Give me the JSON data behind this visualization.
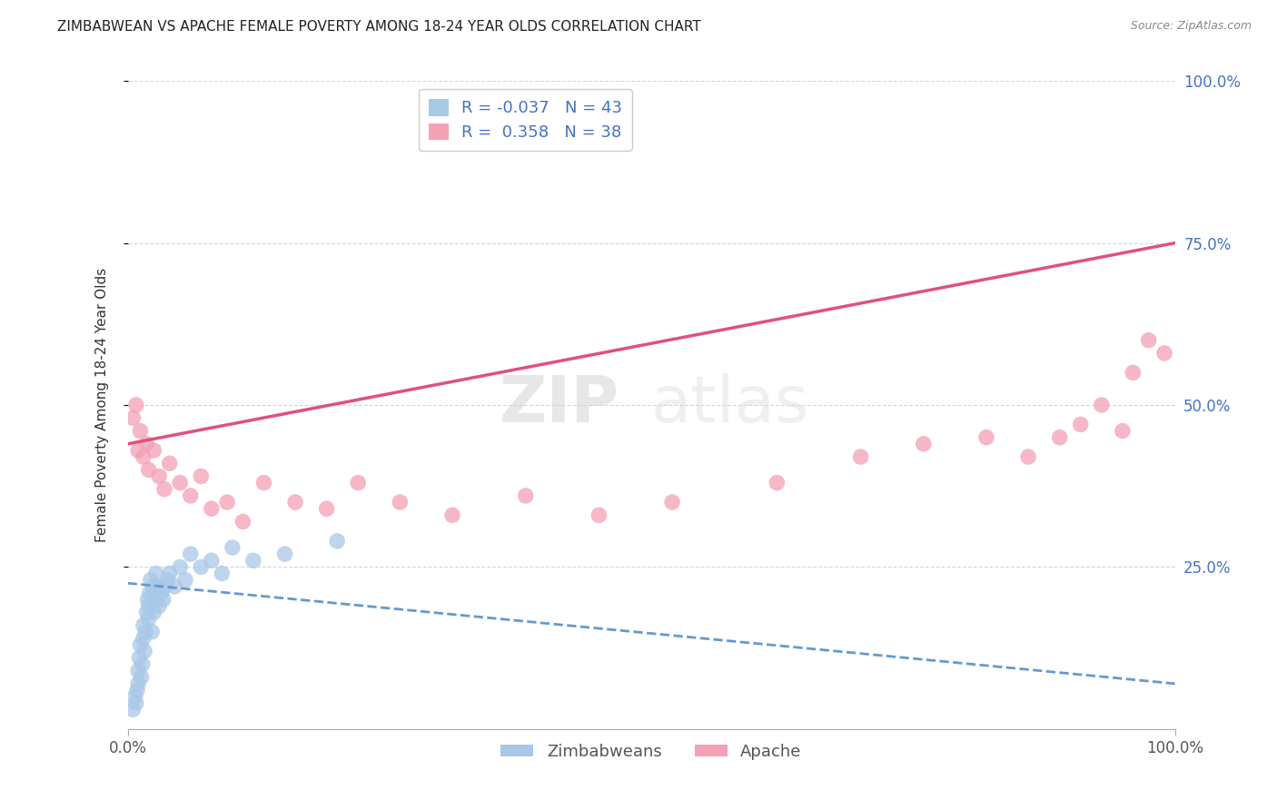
{
  "title": "ZIMBABWEAN VS APACHE FEMALE POVERTY AMONG 18-24 YEAR OLDS CORRELATION CHART",
  "source": "Source: ZipAtlas.com",
  "ylabel": "Female Poverty Among 18-24 Year Olds",
  "xlim": [
    0,
    1
  ],
  "ylim": [
    0,
    1
  ],
  "xticks": [
    0,
    1.0
  ],
  "yticks": [
    0.25,
    0.5,
    0.75,
    1.0
  ],
  "xticklabels": [
    "0.0%",
    "100.0%"
  ],
  "yticklabels": [
    "25.0%",
    "50.0%",
    "75.0%",
    "100.0%"
  ],
  "blue_color": "#a8c8e8",
  "pink_color": "#f4a0b5",
  "blue_line_color": "#6699cc",
  "pink_line_color": "#e05080",
  "legend_blue_R": "-0.037",
  "legend_blue_N": "43",
  "legend_pink_R": "0.358",
  "legend_pink_N": "38",
  "legend_label1": "Zimbabweans",
  "legend_label2": "Apache",
  "watermark1": "ZIP",
  "watermark2": "atlas",
  "title_fontsize": 11,
  "tick_fontsize": 12,
  "legend_fontsize": 13,
  "blue_x": [
    0.005,
    0.007,
    0.008,
    0.009,
    0.01,
    0.01,
    0.011,
    0.012,
    0.013,
    0.014,
    0.015,
    0.015,
    0.016,
    0.017,
    0.018,
    0.019,
    0.02,
    0.02,
    0.021,
    0.022,
    0.023,
    0.024,
    0.025,
    0.026,
    0.027,
    0.028,
    0.03,
    0.032,
    0.034,
    0.036,
    0.038,
    0.04,
    0.045,
    0.05,
    0.055,
    0.06,
    0.07,
    0.08,
    0.09,
    0.1,
    0.12,
    0.15,
    0.2
  ],
  "blue_y": [
    0.03,
    0.05,
    0.04,
    0.06,
    0.07,
    0.09,
    0.11,
    0.13,
    0.08,
    0.1,
    0.14,
    0.16,
    0.12,
    0.15,
    0.18,
    0.2,
    0.17,
    0.19,
    0.21,
    0.23,
    0.15,
    0.22,
    0.18,
    0.2,
    0.24,
    0.22,
    0.19,
    0.21,
    0.2,
    0.22,
    0.23,
    0.24,
    0.22,
    0.25,
    0.23,
    0.27,
    0.25,
    0.26,
    0.24,
    0.28,
    0.26,
    0.27,
    0.29
  ],
  "pink_x": [
    0.005,
    0.008,
    0.01,
    0.012,
    0.015,
    0.018,
    0.02,
    0.025,
    0.03,
    0.035,
    0.04,
    0.05,
    0.06,
    0.07,
    0.08,
    0.095,
    0.11,
    0.13,
    0.16,
    0.19,
    0.22,
    0.26,
    0.31,
    0.38,
    0.45,
    0.52,
    0.62,
    0.7,
    0.76,
    0.82,
    0.86,
    0.89,
    0.91,
    0.93,
    0.95,
    0.96,
    0.975,
    0.99
  ],
  "pink_y": [
    0.48,
    0.5,
    0.43,
    0.46,
    0.42,
    0.44,
    0.4,
    0.43,
    0.39,
    0.37,
    0.41,
    0.38,
    0.36,
    0.39,
    0.34,
    0.35,
    0.32,
    0.38,
    0.35,
    0.34,
    0.38,
    0.35,
    0.33,
    0.36,
    0.33,
    0.35,
    0.38,
    0.42,
    0.44,
    0.45,
    0.42,
    0.45,
    0.47,
    0.5,
    0.46,
    0.55,
    0.6,
    0.58
  ],
  "pink_line_y0": 0.44,
  "pink_line_y1": 0.75,
  "blue_line_y0": 0.225,
  "blue_line_y1": 0.07
}
